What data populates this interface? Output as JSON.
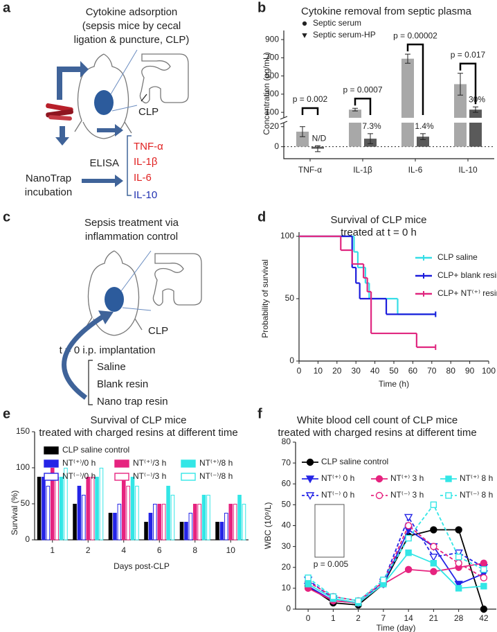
{
  "panel_labels": [
    "a",
    "b",
    "c",
    "d",
    "e",
    "f"
  ],
  "diagram_a": {
    "title": [
      "Cytokine adsorption",
      "(sepsis mice by cecal",
      "ligation & puncture, CLP)"
    ],
    "site": "CLP",
    "assay": "ELISA",
    "cytokines": [
      "TNF-α",
      "IL-1β",
      "IL-6",
      "IL-10"
    ],
    "incubation": [
      "NanoTrap",
      "incubation"
    ]
  },
  "diagram_c": {
    "title": [
      "Sepsis treatment via",
      "inflammation control"
    ],
    "site": "CLP",
    "step": "t = 0 i.p. implantation",
    "treatments": [
      "Saline",
      "Blank resin",
      "Nano trap resin"
    ]
  },
  "chart_data": [
    {
      "type": "bar",
      "title": [
        "Cytokine removal from septic plasma"
      ],
      "y_label": "Concentration (pg/mL)",
      "categories": [
        "TNF-α",
        "IL-1β",
        "IL-6",
        "IL-10"
      ],
      "series": [
        {
          "name": "Septic serum",
          "color": "#a8a8a8",
          "marker": "circle",
          "values": [
            15,
            130,
            690,
            410
          ],
          "errors": [
            5,
            15,
            50,
            120
          ]
        },
        {
          "name": "Septic serum-HP",
          "color": "#5a5a5a",
          "marker": "triangle-down",
          "values": [
            -2,
            8,
            10,
            130
          ],
          "errors": [
            3,
            5,
            3,
            30
          ]
        }
      ],
      "ylim": [
        -12,
        1000
      ],
      "ybreak": [
        24,
        40
      ],
      "yticks": [
        0,
        20,
        100,
        300,
        500,
        700,
        900
      ],
      "annotations": [
        "p = 0.002",
        "p = 0.0007",
        "p = 0.00002",
        "p = 0.017"
      ],
      "bar_notes": [
        "N/D",
        "7.3%",
        "1.4%",
        "30%"
      ]
    },
    {
      "type": "line",
      "step": true,
      "title": [
        "Survival of CLP mice",
        "treated at t = 0 h"
      ],
      "x_label": "Time (h)",
      "y_label": "Probability of survival",
      "xlim": [
        0,
        100
      ],
      "xticks": [
        0,
        10,
        20,
        30,
        40,
        50,
        60,
        70,
        80,
        90,
        100
      ],
      "ylim": [
        0,
        100
      ],
      "yticks": [
        0,
        50,
        100
      ],
      "series": [
        {
          "name": "CLP saline",
          "color": "#35dde6",
          "x": [
            0,
            29,
            31,
            35,
            37,
            52,
            72
          ],
          "values": [
            100,
            87.5,
            75,
            62.5,
            50,
            37.5,
            37.5
          ]
        },
        {
          "name": "CLP+ blank resin",
          "color": "#1c1cdc",
          "x": [
            0,
            28,
            30,
            32,
            46,
            72
          ],
          "values": [
            100,
            75,
            62.5,
            50,
            37.5,
            37.5
          ]
        },
        {
          "name": "CLP+ NT⁽⁺⁾ resin",
          "color": "#e0267f",
          "x": [
            0,
            22,
            28,
            34,
            36,
            38,
            62,
            72
          ],
          "values": [
            100,
            88.9,
            77.8,
            66.7,
            55.6,
            22.2,
            11.1,
            11.1
          ]
        }
      ]
    },
    {
      "type": "bar",
      "title": [
        "Survival of CLP mice",
        "treated with charged resins at different time"
      ],
      "x_label": "Days post-CLP",
      "y_label": "Survival (%)",
      "categories": [
        "1",
        "2",
        "4",
        "6",
        "8",
        "10"
      ],
      "ylim": [
        0,
        150
      ],
      "yticks": [
        0,
        50,
        100,
        150
      ],
      "series": [
        {
          "name": "CLP saline control",
          "color": "#000000",
          "filled": true,
          "values": [
            87.5,
            50,
            37.5,
            25,
            25,
            25
          ]
        },
        {
          "name": "NT⁽⁺⁾/0 h",
          "color": "#2424e6",
          "filled": true,
          "values": [
            87.5,
            75,
            37.5,
            37.5,
            25,
            25
          ]
        },
        {
          "name": "NT⁽⁻⁾/0 h",
          "color": "#2424e6",
          "filled": false,
          "values": [
            75,
            62.5,
            50,
            50,
            37.5,
            37.5
          ]
        },
        {
          "name": "NT⁽⁺⁾/3 h",
          "color": "#e6237f",
          "filled": true,
          "values": [
            100,
            87.5,
            87.5,
            50,
            50,
            50
          ]
        },
        {
          "name": "NT⁽⁻⁾/3 h",
          "color": "#e6237f",
          "filled": false,
          "values": [
            87.5,
            87.5,
            75,
            50,
            50,
            50
          ]
        },
        {
          "name": "NT⁽⁺⁾/8 h",
          "color": "#33e6e6",
          "filled": true,
          "values": [
            87.5,
            87.5,
            87.5,
            75,
            62.5,
            62.5
          ]
        },
        {
          "name": "NT⁽⁻⁾/8 h",
          "color": "#33e6e6",
          "filled": false,
          "values": [
            100,
            100,
            75,
            62.5,
            62.5,
            50
          ]
        }
      ]
    },
    {
      "type": "line",
      "title": [
        "White blood cell count of CLP mice",
        "treated with charged resins at different time"
      ],
      "x_label": "Time (day)",
      "y_label": "WBC (10⁹/L)",
      "categories": [
        "0",
        "1",
        "2",
        "7",
        "14",
        "21",
        "28",
        "42"
      ],
      "ylim": [
        0,
        80
      ],
      "yticks": [
        0,
        10,
        20,
        30,
        40,
        50,
        60,
        70,
        80
      ],
      "annotations": [
        "p = 0.005"
      ],
      "series": [
        {
          "name": "CLP saline control",
          "color": "#000000",
          "marker": "circle",
          "filled": true,
          "dash": false,
          "values": [
            11,
            3,
            2,
            12,
            35,
            38,
            38,
            0
          ]
        },
        {
          "name": "NT⁽⁺⁾ 0 h",
          "color": "#2424e6",
          "marker": "triangle-down",
          "filled": true,
          "dash": false,
          "values": [
            11,
            4,
            3,
            12,
            38,
            30,
            12,
            17
          ]
        },
        {
          "name": "NT⁽⁻⁾ 0 h",
          "color": "#2424e6",
          "marker": "triangle-down",
          "filled": false,
          "dash": true,
          "values": [
            14,
            5,
            3,
            13,
            44,
            25,
            27,
            20
          ]
        },
        {
          "name": "NT⁽⁺⁾ 3 h",
          "color": "#e6237f",
          "marker": "circle",
          "filled": true,
          "dash": false,
          "values": [
            10,
            4,
            3,
            12,
            19,
            18,
            20,
            22
          ]
        },
        {
          "name": "NT⁽⁻⁾ 3 h",
          "color": "#e6237f",
          "marker": "circle",
          "filled": false,
          "dash": true,
          "values": [
            13,
            6,
            4,
            13,
            40,
            30,
            22,
            15
          ]
        },
        {
          "name": "NT⁽⁺⁾ 8 h",
          "color": "#33e6e6",
          "marker": "square",
          "filled": true,
          "dash": false,
          "values": [
            12,
            5,
            3,
            12,
            27,
            22,
            10,
            11
          ]
        },
        {
          "name": "NT⁽⁻⁾ 8 h",
          "color": "#33e6e6",
          "marker": "square",
          "filled": false,
          "dash": true,
          "values": [
            15,
            6,
            4,
            14,
            34,
            50,
            25,
            19
          ]
        }
      ]
    }
  ]
}
